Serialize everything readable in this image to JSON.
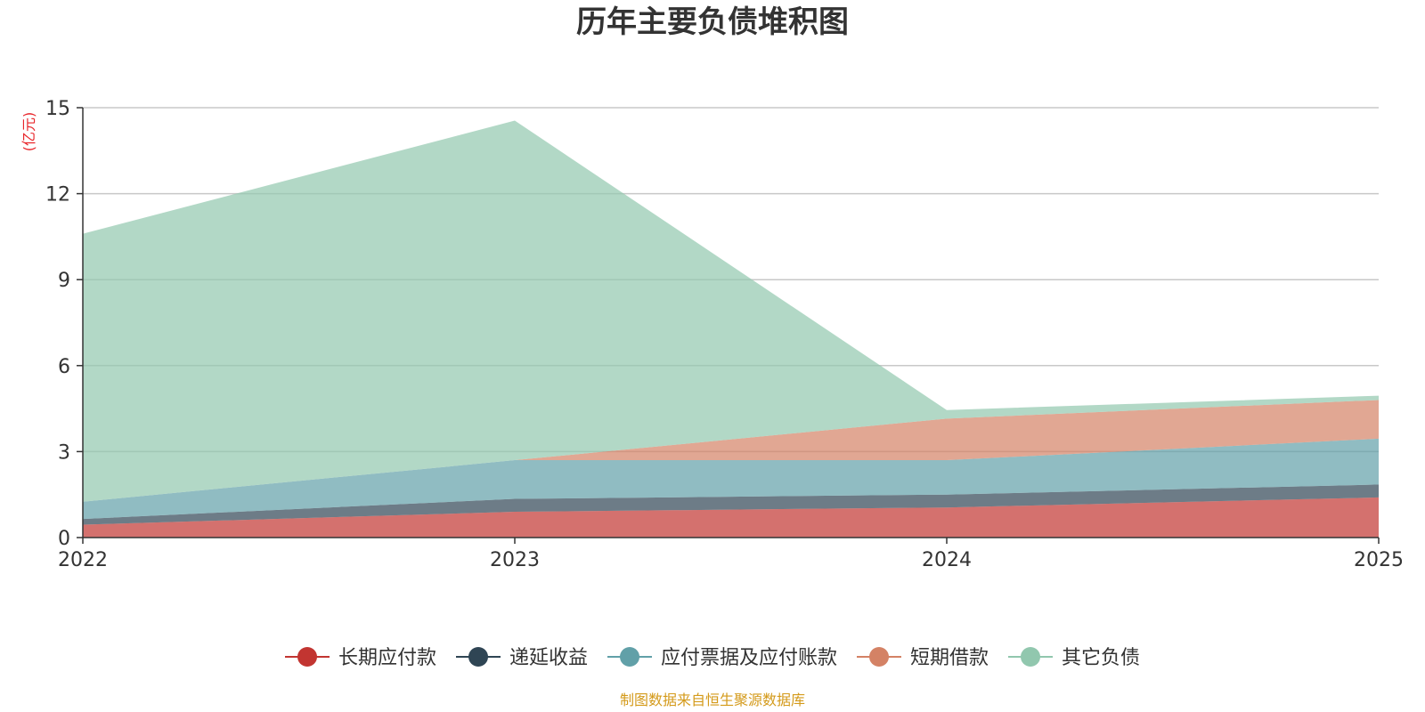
{
  "chart_data": {
    "type": "area",
    "stacked": true,
    "title": "历年主要负债堆积图",
    "ylabel": "亿元",
    "xlabel": "",
    "categories": [
      "2022",
      "2023",
      "2024",
      "2025"
    ],
    "ylim": [
      0,
      15
    ],
    "yticks": [
      0,
      3,
      6,
      9,
      12,
      15
    ],
    "grid": true,
    "legend_position": "bottom",
    "series": [
      {
        "name": "长期应付款",
        "color": "#c23531",
        "values": [
          0.45,
          0.9,
          1.05,
          1.4
        ]
      },
      {
        "name": "递延收益",
        "color": "#2f4554",
        "values": [
          0.2,
          0.45,
          0.45,
          0.45
        ]
      },
      {
        "name": "应付票据及应付账款",
        "color": "#61a0a8",
        "values": [
          0.6,
          1.35,
          1.2,
          1.6
        ]
      },
      {
        "name": "短期借款",
        "color": "#d48265",
        "values": [
          0.0,
          0.0,
          1.45,
          1.35
        ]
      },
      {
        "name": "其它负债",
        "color": "#91c7ae",
        "values": [
          9.35,
          11.85,
          0.3,
          0.15
        ]
      }
    ],
    "source_note": "制图数据来自恒生聚源数据库"
  }
}
